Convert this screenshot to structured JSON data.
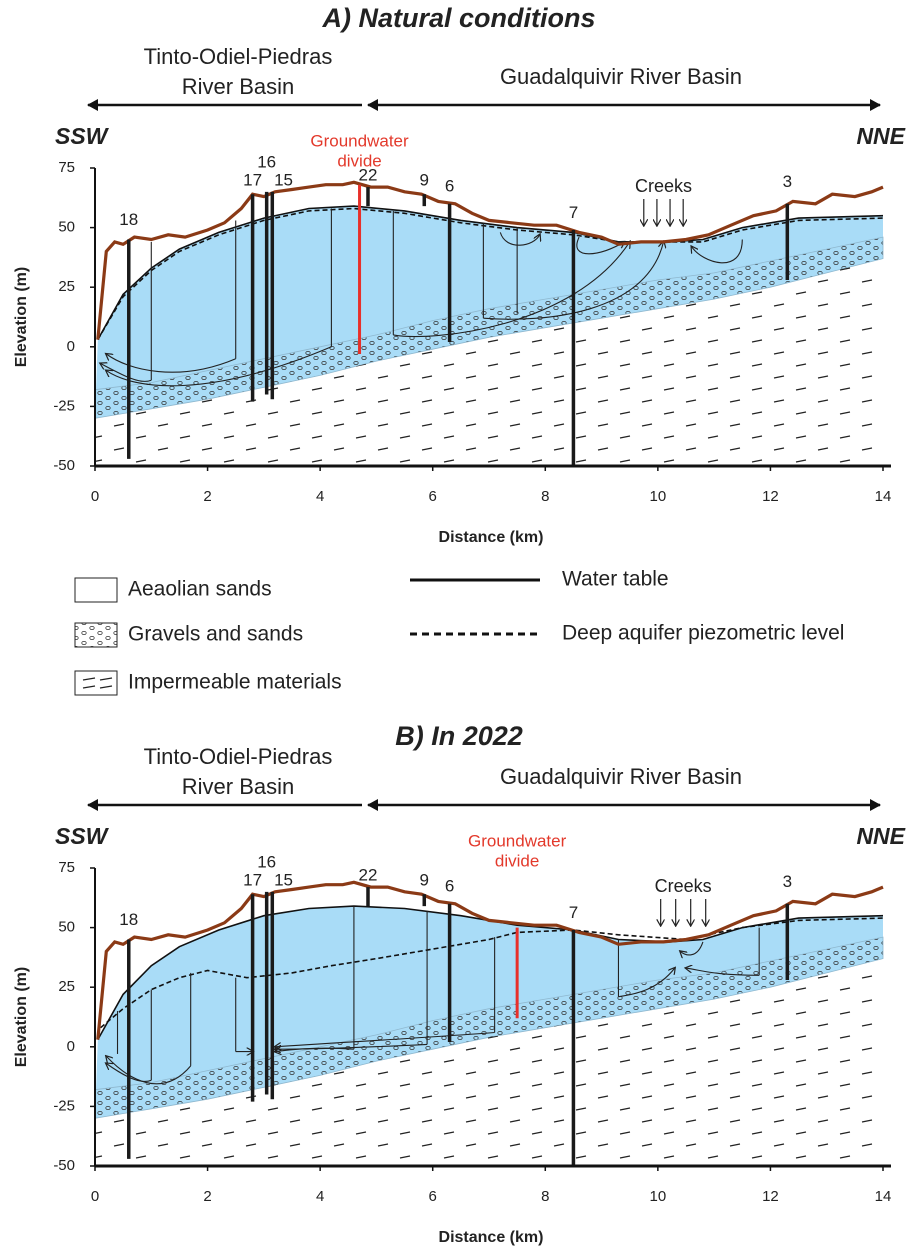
{
  "panels": [
    {
      "title": "A) Natural conditions",
      "left_basin": [
        "Tinto-Odiel-Piedras",
        "River Basin"
      ],
      "right_basin": "Guadalquivir River Basin",
      "left_direction": "SSW",
      "right_direction": "NNE",
      "divide_label": [
        "Groundwater",
        "divide"
      ],
      "creeks_label": "Creeks",
      "wells": [
        "18",
        "17",
        "16",
        "15",
        "22",
        "9",
        "6",
        "7",
        "3"
      ],
      "x_label": "Distance (km)",
      "y_label": "Elevation (m)",
      "xlim": [
        0,
        14
      ],
      "ylim": [
        -50,
        75
      ],
      "xticks": [
        0,
        2,
        4,
        6,
        8,
        10,
        12,
        14
      ],
      "yticks": [
        75,
        50,
        25,
        0,
        -25,
        -50
      ]
    },
    {
      "title": "B) In 2022",
      "left_basin": [
        "Tinto-Odiel-Piedras",
        "River Basin"
      ],
      "right_basin": "Guadalquivir River Basin",
      "left_direction": "SSW",
      "right_direction": "NNE",
      "divide_label": [
        "Groundwater",
        "divide"
      ],
      "creeks_label": "Creeks",
      "wells": [
        "18",
        "17",
        "16",
        "15",
        "22",
        "9",
        "6",
        "7",
        "3"
      ],
      "x_label": "Distance (km)",
      "y_label": "Elevation (m)",
      "xlim": [
        0,
        14
      ],
      "ylim": [
        -50,
        75
      ],
      "xticks": [
        0,
        2,
        4,
        6,
        8,
        10,
        12,
        14
      ],
      "yticks": [
        75,
        50,
        25,
        0,
        -25,
        -50
      ]
    }
  ],
  "legend": {
    "left": [
      "Aeaolian sands",
      "Gravels and sands",
      "Impermeable materials"
    ],
    "right": [
      "Water table",
      "Deep aquifer piezometric level"
    ]
  }
}
